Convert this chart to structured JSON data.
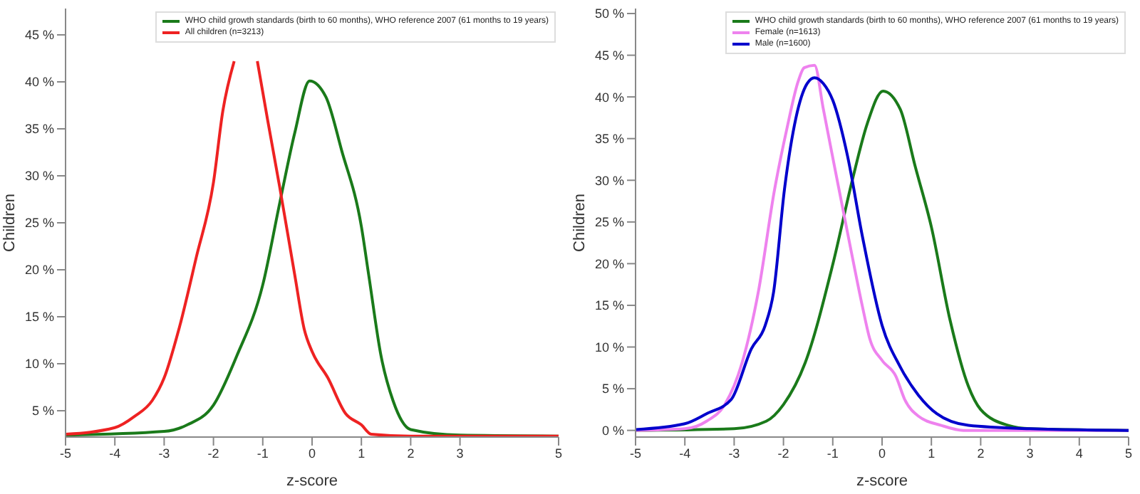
{
  "chart_data": [
    {
      "type": "line",
      "xlabel": "z-score",
      "ylabel": "Children",
      "legend": "top right",
      "xlim": [
        -5,
        5
      ],
      "xticks": [
        -5,
        -4,
        -3,
        -2,
        -1,
        0,
        1,
        2,
        3,
        5
      ],
      "ylim": [
        2.2,
        47.8
      ],
      "yticks": [
        {
          "value": 5,
          "label": "5 %"
        },
        {
          "value": 10,
          "label": "10 %"
        },
        {
          "value": 15,
          "label": "15 %"
        },
        {
          "value": 20,
          "label": "20 %"
        },
        {
          "value": 25,
          "label": "25 %"
        },
        {
          "value": 30,
          "label": "30 %"
        },
        {
          "value": 35,
          "label": "35 %"
        },
        {
          "value": 40,
          "label": "40 %"
        },
        {
          "value": 45,
          "label": "45 %"
        }
      ],
      "series": [
        {
          "name": "WHO child growth standards (birth to 60 months), WHO reference 2007 (61 months to 19 years)",
          "color": "#1a7a1a",
          "x": [
            -5,
            -3,
            -2.53,
            -2,
            -1.53,
            -1,
            -0.66,
            -0.35,
            -0.05,
            0.28,
            0.6,
            1,
            1.15,
            1.4,
            1.64,
            2,
            3,
            5
          ],
          "values": [
            2.4,
            2.8,
            3.5,
            5.6,
            10.8,
            18.4,
            27.0,
            34.6,
            40.1,
            38.4,
            32.7,
            24.6,
            19.4,
            10.8,
            6.1,
            3.0,
            2.4,
            2.3
          ]
        },
        {
          "name": "All children (n=3213)",
          "color": "#ee2222",
          "x": [
            -5,
            -4,
            -3.6,
            -3.24,
            -3,
            -2.7,
            -2.35,
            -2,
            -1.81,
            -1.58,
            -1.35,
            -1.11,
            -0.9,
            -0.66,
            -0.35,
            -0.16,
            0,
            0.32,
            0.68,
            1,
            1.2,
            2,
            5
          ],
          "values": [
            2.5,
            3.2,
            4.4,
            6.1,
            8.5,
            13.7,
            21.3,
            29.3,
            36.9,
            42.2,
            null,
            42.2,
            35.9,
            28.9,
            19.4,
            13.7,
            11.3,
            8.5,
            4.7,
            3.5,
            2.5,
            2.3,
            2.3
          ]
        }
      ]
    },
    {
      "type": "line",
      "xlabel": "z-score",
      "ylabel": "Children",
      "legend": "top right",
      "xlim": [
        -5,
        5
      ],
      "xticks": [
        -5,
        -4,
        -3,
        -2,
        -1,
        0,
        1,
        2,
        3,
        4,
        5
      ],
      "ylim": [
        -0.8,
        50.6
      ],
      "yticks": [
        {
          "value": 0,
          "label": "0 %"
        },
        {
          "value": 5,
          "label": "5 %"
        },
        {
          "value": 10,
          "label": "10 %"
        },
        {
          "value": 15,
          "label": "15 %"
        },
        {
          "value": 20,
          "label": "20 %"
        },
        {
          "value": 25,
          "label": "25 %"
        },
        {
          "value": 30,
          "label": "30 %"
        },
        {
          "value": 35,
          "label": "35 %"
        },
        {
          "value": 40,
          "label": "40 %"
        },
        {
          "value": 45,
          "label": "45 %"
        },
        {
          "value": 50,
          "label": "50 %"
        }
      ],
      "series": [
        {
          "name": "WHO child growth standards (birth to 60 months), WHO reference 2007 (61 months to 19 years)",
          "color": "#1a7a1a",
          "x": [
            -5,
            -3,
            -2.35,
            -2,
            -1.56,
            -1,
            -0.6,
            -0.3,
            0.02,
            0.37,
            0.67,
            1,
            1.38,
            1.75,
            2,
            2.56,
            3,
            5
          ],
          "values": [
            0,
            0.2,
            1.1,
            3.1,
            8.1,
            19.9,
            30.1,
            36.8,
            40.7,
            38.5,
            31.7,
            24.4,
            13.2,
            5.3,
            2.5,
            0.6,
            0.2,
            0
          ]
        },
        {
          "name": "Female (n=1613)",
          "color": "#ee82ee",
          "x": [
            -5,
            -4,
            -3.56,
            -3.19,
            -2.84,
            -2.51,
            -2.18,
            -1.93,
            -1.7,
            -1.58,
            -1.37,
            -1.19,
            -0.95,
            -0.65,
            -0.4,
            -0.25,
            0,
            0.28,
            0.46,
            0.74,
            1.2,
            1.65,
            5
          ],
          "values": [
            0,
            0.2,
            1.1,
            3.1,
            8.1,
            16.6,
            28.9,
            36.2,
            41.9,
            43.5,
            43.8,
            38.5,
            31.2,
            22.2,
            14.9,
            11.0,
            8.4,
            6.5,
            3.7,
            1.7,
            0.6,
            0,
            0
          ]
        },
        {
          "name": "Male (n=1600)",
          "color": "#0000cc",
          "x": [
            -5,
            -4,
            -3.56,
            -3.06,
            -2.65,
            -2.37,
            -2.2,
            -1.98,
            -1.75,
            -1.52,
            -1.37,
            -1.19,
            -1,
            -0.7,
            -0.4,
            0,
            0.37,
            0.74,
            1.11,
            1.75,
            3,
            5
          ],
          "values": [
            0.1,
            0.8,
            2.0,
            3.7,
            9.8,
            12.6,
            16.6,
            28.9,
            37.4,
            41.6,
            42.3,
            41.6,
            39.6,
            32.9,
            23.3,
            12.6,
            7.6,
            4.2,
            2.0,
            0.6,
            0.2,
            0
          ]
        }
      ]
    }
  ]
}
